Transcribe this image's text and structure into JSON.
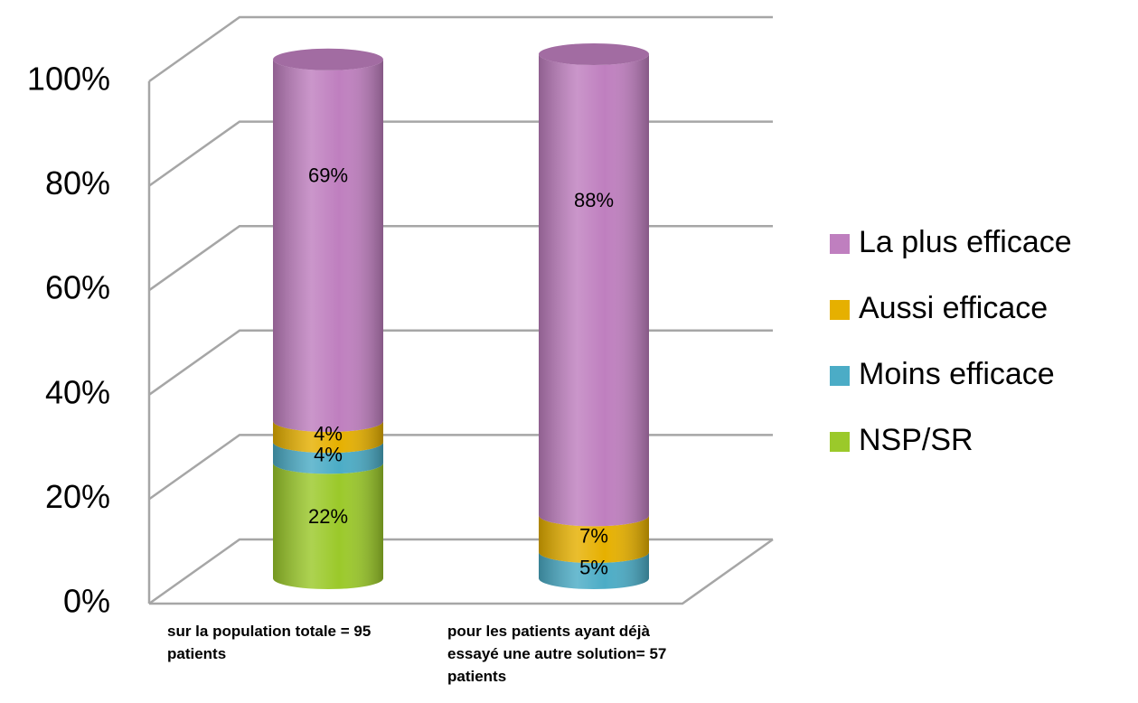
{
  "chart_data": {
    "type": "bar3d_stacked",
    "categories": [
      "sur la population totale = 95 patients",
      "pour les patients ayant déjà essayé une autre solution= 57 patients"
    ],
    "series": [
      {
        "name": "NSP/SR",
        "color": "#9bc92a",
        "values": [
          22,
          null
        ],
        "value_labels": [
          "22%",
          null
        ]
      },
      {
        "name": "Moins efficace",
        "color": "#4bacc6",
        "values": [
          4,
          5
        ],
        "value_labels": [
          "4%",
          "5%"
        ]
      },
      {
        "name": "Aussi efficace",
        "color": "#e6b000",
        "values": [
          4,
          7
        ],
        "value_labels": [
          "4%",
          "7%"
        ]
      },
      {
        "name": "La plus efficace",
        "color": "#bf7fbf",
        "values": [
          69,
          88
        ],
        "value_labels": [
          "69%",
          "88%"
        ]
      }
    ],
    "ylim": [
      0,
      100
    ],
    "yticks": [
      {
        "value": 0,
        "label": "0%"
      },
      {
        "value": 20,
        "label": "20%"
      },
      {
        "value": 40,
        "label": "40%"
      },
      {
        "value": 60,
        "label": "60%"
      },
      {
        "value": 80,
        "label": "80%"
      },
      {
        "value": 100,
        "label": "100%"
      }
    ],
    "grid": true,
    "legend": "right"
  }
}
